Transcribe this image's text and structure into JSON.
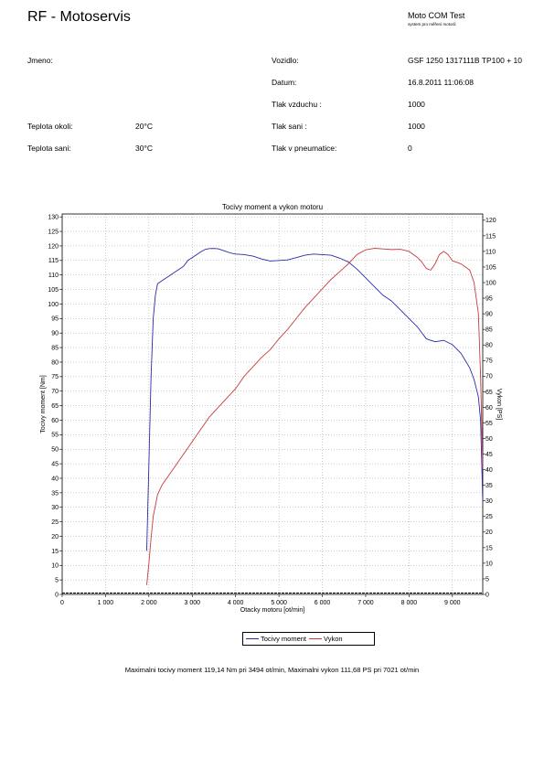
{
  "header": {
    "title": "RF - Motoservis",
    "brand": "Moto COM Test",
    "brand_sub": "system pro měření motorů"
  },
  "info": {
    "jmeno_label": "Jmeno:",
    "jmeno_value": "",
    "vozidlo_label": "Vozidlo:",
    "vozidlo_value": "GSF 1250 1317111B TP100 + 10",
    "datum_label": "Datum:",
    "datum_value": "16.8.2011 11:06:08",
    "tlak_vzduchu_label": "Tlak vzduchu :",
    "tlak_vzduchu_value": "1000",
    "teplota_okoli_label": "Teplota okoli:",
    "teplota_okoli_value": "20°C",
    "tlak_sani_label": "Tlak sani :",
    "tlak_sani_value": "1000",
    "teplota_sani_label": "Teplota sani:",
    "teplota_sani_value": "30°C",
    "tlak_pneu_label": "Tlak v pneumatice:",
    "tlak_pneu_value": "0"
  },
  "summary": "Maximalni tocivy moment 119,14 Nm pri 3494 ot/min,  Maximalni vykon 111,68 PS pri 7021 ot/min",
  "chart_data": {
    "type": "line",
    "title": "Tocivy moment a vykon motoru",
    "xlabel": "Otacky motoru [ot/min]",
    "ylabel": "Tocivy moment [Nm]",
    "y2label": "Vykon [PS]",
    "xlim": [
      0,
      9700
    ],
    "ylim": [
      0,
      131
    ],
    "y2lim": [
      0,
      122
    ],
    "x_ticks": [
      0,
      1000,
      2000,
      3000,
      4000,
      5000,
      6000,
      7000,
      8000,
      9000
    ],
    "x_tick_labels": [
      "0",
      "1 000",
      "2 000",
      "3 000",
      "4 000",
      "5 000",
      "6 000",
      "7 000",
      "8 000",
      "9 000"
    ],
    "y_ticks": [
      0,
      5,
      10,
      15,
      20,
      25,
      30,
      35,
      40,
      45,
      50,
      55,
      60,
      65,
      70,
      75,
      80,
      85,
      90,
      95,
      100,
      105,
      110,
      115,
      120,
      125,
      130
    ],
    "y2_ticks": [
      0,
      5,
      10,
      15,
      20,
      25,
      30,
      35,
      40,
      45,
      50,
      55,
      60,
      65,
      70,
      75,
      80,
      85,
      90,
      95,
      100,
      105,
      110,
      115,
      120
    ],
    "grid": true,
    "legend_position": "bottom-center",
    "series": [
      {
        "name": "Tocivy moment",
        "axis": "left",
        "color": "#2a2aa8",
        "x": [
          1950,
          2000,
          2050,
          2100,
          2150,
          2200,
          2300,
          2400,
          2500,
          2600,
          2700,
          2800,
          2900,
          3000,
          3100,
          3200,
          3300,
          3400,
          3500,
          3600,
          3700,
          3800,
          3900,
          4000,
          4200,
          4400,
          4600,
          4800,
          5000,
          5200,
          5400,
          5600,
          5800,
          6000,
          6200,
          6400,
          6600,
          6800,
          7000,
          7200,
          7400,
          7600,
          7800,
          8000,
          8200,
          8400,
          8600,
          8800,
          9000,
          9200,
          9400,
          9500,
          9600,
          9650,
          9700
        ],
        "values": [
          15,
          45,
          75,
          95,
          103,
          107,
          108,
          109,
          110,
          111,
          112,
          113,
          115,
          116,
          117,
          118,
          118.8,
          119.1,
          119.14,
          119,
          118.5,
          118,
          117.5,
          117.2,
          117,
          116.5,
          115.5,
          114.8,
          115,
          115.2,
          116,
          116.8,
          117.2,
          117,
          116.8,
          115.8,
          114.5,
          112,
          109,
          106,
          103,
          101,
          98,
          95,
          92,
          88,
          87,
          87.5,
          86,
          83,
          78,
          74,
          68,
          60,
          32
        ]
      },
      {
        "name": "Vykon",
        "axis": "right",
        "color": "#c83c3c",
        "x": [
          1950,
          2000,
          2050,
          2100,
          2200,
          2300,
          2400,
          2500,
          2600,
          2700,
          2800,
          2900,
          3000,
          3200,
          3400,
          3600,
          3800,
          4000,
          4200,
          4400,
          4600,
          4800,
          5000,
          5200,
          5400,
          5600,
          5800,
          6000,
          6200,
          6400,
          6600,
          6800,
          7000,
          7200,
          7400,
          7600,
          7800,
          8000,
          8200,
          8300,
          8400,
          8500,
          8600,
          8700,
          8800,
          8900,
          9000,
          9200,
          9400,
          9500,
          9600,
          9650,
          9700
        ],
        "values": [
          3,
          10,
          18,
          25,
          32,
          35,
          37,
          39,
          41,
          43,
          45,
          47,
          49,
          53,
          57,
          60,
          63,
          66,
          70,
          73,
          76,
          78.5,
          82,
          85,
          88.5,
          92,
          95,
          98,
          101,
          103.5,
          106,
          109,
          110.5,
          111,
          110.8,
          110.6,
          110.7,
          110,
          108,
          106.5,
          104.5,
          104,
          106,
          109,
          110,
          109,
          107,
          106,
          104,
          100,
          90,
          70,
          40
        ]
      }
    ]
  }
}
